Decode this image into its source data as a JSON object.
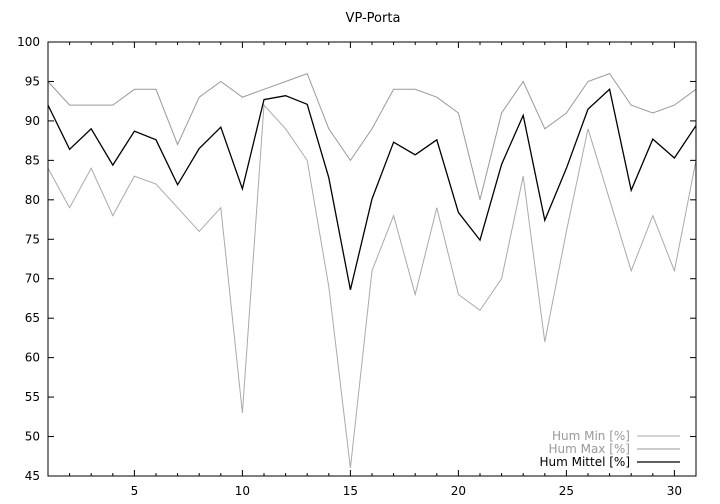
{
  "chart_data": {
    "type": "line",
    "title": "VP-Porta",
    "xlabel": "",
    "ylabel": "",
    "xlim": [
      1,
      31
    ],
    "ylim": [
      45,
      100
    ],
    "x_ticks": [
      5,
      10,
      15,
      20,
      25,
      30
    ],
    "y_ticks": [
      45,
      50,
      55,
      60,
      65,
      70,
      75,
      80,
      85,
      90,
      95,
      100
    ],
    "grid": false,
    "legend_position": "bottom-right",
    "x": [
      1,
      2,
      3,
      4,
      5,
      6,
      7,
      8,
      9,
      10,
      11,
      12,
      13,
      14,
      15,
      16,
      17,
      18,
      19,
      20,
      21,
      22,
      23,
      24,
      25,
      26,
      27,
      28,
      29,
      30,
      31
    ],
    "series": [
      {
        "name": "Hum Min [%]",
        "color": "#aaaaaa",
        "values": [
          84,
          79,
          84,
          78,
          83,
          82,
          79,
          76,
          79,
          53,
          92,
          89,
          85,
          69,
          46,
          71,
          78,
          68,
          79,
          68,
          66,
          70,
          83,
          62,
          76,
          89,
          80,
          71,
          78,
          71,
          85
        ]
      },
      {
        "name": "Hum Max [%]",
        "color": "#999999",
        "values": [
          95,
          92,
          92,
          92,
          94,
          94,
          87,
          93,
          95,
          93,
          94,
          95,
          96,
          89,
          85,
          89,
          94,
          94,
          93,
          91,
          80,
          91,
          95,
          89,
          91,
          95,
          96,
          92,
          91,
          92,
          94
        ]
      },
      {
        "name": "Hum Mittel [%]",
        "color": "#000000",
        "values": [
          92,
          86.4,
          89,
          84.4,
          88.7,
          87.6,
          81.9,
          86.5,
          89.2,
          81.4,
          92.7,
          93.2,
          92.1,
          82.8,
          68.6,
          80.1,
          87.3,
          85.7,
          87.6,
          78.4,
          74.9,
          84.5,
          90.7,
          77.4,
          84,
          91.5,
          94,
          81.2,
          87.7,
          85.3,
          89.4
        ]
      }
    ]
  }
}
